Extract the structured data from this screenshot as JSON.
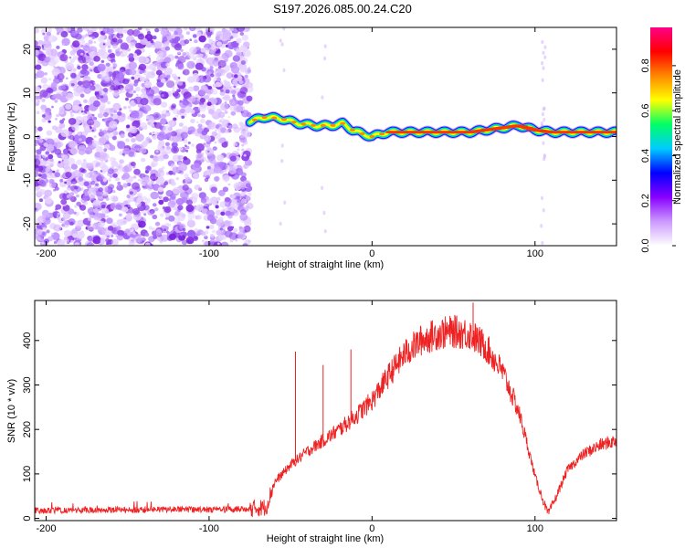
{
  "title": "S197.2026.085.00.24.C20",
  "chart_data": [
    {
      "type": "heatmap",
      "name": "spectrogram",
      "xlabel": "Height of straight line (km)",
      "ylabel": "Frequency (Hz)",
      "xlim": [
        -207,
        150
      ],
      "ylim": [
        -25,
        25
      ],
      "xticks": [
        -200,
        -100,
        0,
        100
      ],
      "xtick_labels": [
        "-200",
        "-100",
        "0",
        "100"
      ],
      "yticks": [
        -20,
        -10,
        0,
        10,
        20
      ],
      "ytick_labels": [
        "-20",
        "-10",
        "0",
        "10",
        "20"
      ],
      "colorbar": {
        "label": "Normalized spectral amplitude",
        "range": [
          0,
          0.97
        ],
        "ticks": [
          0,
          0.2,
          0.4,
          0.6,
          0.8
        ],
        "tick_labels": [
          "0.0",
          "0.2",
          "0.4",
          "0.6",
          "0.8"
        ],
        "colors": [
          "#ffffff",
          "#cc99ff",
          "#8800ff",
          "#0000ff",
          "#00ccff",
          "#00ff66",
          "#ffff00",
          "#ff8800",
          "#ff0000",
          "#ff0088"
        ]
      },
      "noise_region_x": [
        -207,
        -75
      ],
      "trace_x": [
        -75,
        -65,
        -55,
        -45,
        -35,
        -25,
        -18,
        -12,
        -5,
        0,
        10,
        20,
        40,
        60,
        70,
        80,
        90,
        100,
        110,
        130,
        150
      ],
      "trace_y": [
        3.5,
        4.5,
        4,
        3,
        2.5,
        2.5,
        3,
        1.5,
        0.5,
        0,
        1,
        1,
        1,
        1,
        1.5,
        2,
        2.5,
        1.5,
        1,
        1,
        1
      ]
    },
    {
      "type": "line",
      "name": "snr",
      "xlabel": "Height of straight line (km)",
      "ylabel": "SNR (10 * v/v)",
      "xlim": [
        -207,
        150
      ],
      "ylim": [
        -5,
        490
      ],
      "xticks": [
        -200,
        -100,
        0,
        100
      ],
      "xtick_labels": [
        "-200",
        "-100",
        "0",
        "100"
      ],
      "yticks": [
        0,
        100,
        200,
        300,
        400
      ],
      "ytick_labels": [
        "0",
        "100",
        "200",
        "300",
        "400"
      ],
      "color": "#ee2222",
      "series": [
        {
          "name": "SNR",
          "x": [
            -207,
            -190,
            -170,
            -150,
            -130,
            -110,
            -90,
            -75,
            -65,
            -60,
            -50,
            -40,
            -30,
            -20,
            -10,
            0,
            10,
            20,
            30,
            40,
            50,
            60,
            70,
            80,
            90,
            95,
            100,
            105,
            108,
            112,
            120,
            130,
            140,
            150
          ],
          "y": [
            18,
            18,
            19,
            19,
            20,
            20,
            20,
            22,
            25,
            80,
            120,
            150,
            175,
            200,
            230,
            265,
            320,
            370,
            400,
            415,
            420,
            415,
            385,
            330,
            240,
            170,
            95,
            40,
            10,
            40,
            110,
            145,
            165,
            175
          ]
        }
      ],
      "spikes": [
        {
          "x": -47,
          "y": 375
        },
        {
          "x": -30,
          "y": 345
        },
        {
          "x": -13,
          "y": 380
        },
        {
          "x": 62,
          "y": 485
        }
      ]
    }
  ]
}
